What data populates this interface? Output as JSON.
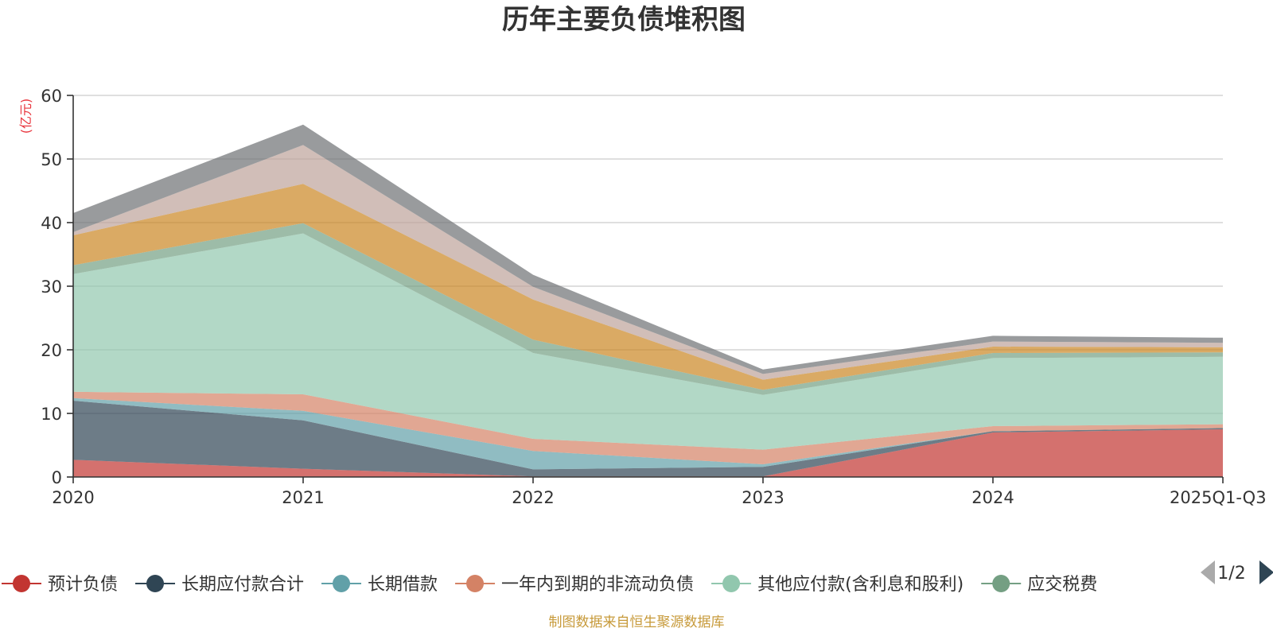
{
  "chart_data": {
    "type": "area",
    "stacked": true,
    "title": "历年主要负债堆积图",
    "unit_label": "(亿元)",
    "x": [
      "2020",
      "2021",
      "2022",
      "2023",
      "2024",
      "2025Q1-Q3"
    ],
    "ylim": [
      0,
      60
    ],
    "yticks": [
      0,
      10,
      20,
      30,
      40,
      50,
      60
    ],
    "grid": true,
    "legend_position": "bottom",
    "legend_page": "1/2",
    "series": [
      {
        "name": "预计负债",
        "color": "#c23531",
        "values": [
          2.7,
          1.3,
          0.1,
          0.1,
          7.0,
          7.5
        ]
      },
      {
        "name": "长期应付款合计",
        "color": "#2f4554",
        "values": [
          9.3,
          7.6,
          1.1,
          1.5,
          0.2,
          0.2
        ]
      },
      {
        "name": "长期借款",
        "color": "#61a0a8",
        "values": [
          0.4,
          1.5,
          2.9,
          0.4,
          0.0,
          0.0
        ]
      },
      {
        "name": "一年内到期的非流动负债",
        "color": "#d48265",
        "values": [
          1.0,
          2.6,
          1.9,
          2.3,
          0.8,
          0.6
        ]
      },
      {
        "name": "其他应付款(含利息和股利)",
        "color": "#91c7ae",
        "values": [
          18.5,
          25.3,
          13.5,
          8.6,
          10.7,
          10.6
        ]
      },
      {
        "name": "应交税费",
        "color": "#749f83",
        "values": [
          1.4,
          1.6,
          2.1,
          0.8,
          0.8,
          0.7
        ]
      },
      {
        "name": "",
        "color": "#ca8622",
        "values": [
          4.7,
          6.2,
          6.3,
          1.6,
          1.0,
          0.8
        ]
      },
      {
        "name": "",
        "color": "#bda29a",
        "values": [
          0.5,
          6.1,
          2.0,
          0.9,
          0.8,
          0.7
        ]
      },
      {
        "name": "",
        "color": "#6e7074",
        "values": [
          3.0,
          3.2,
          1.9,
          0.7,
          0.9,
          0.8
        ]
      }
    ]
  },
  "footer": "制图数据来自恒生聚源数据库"
}
